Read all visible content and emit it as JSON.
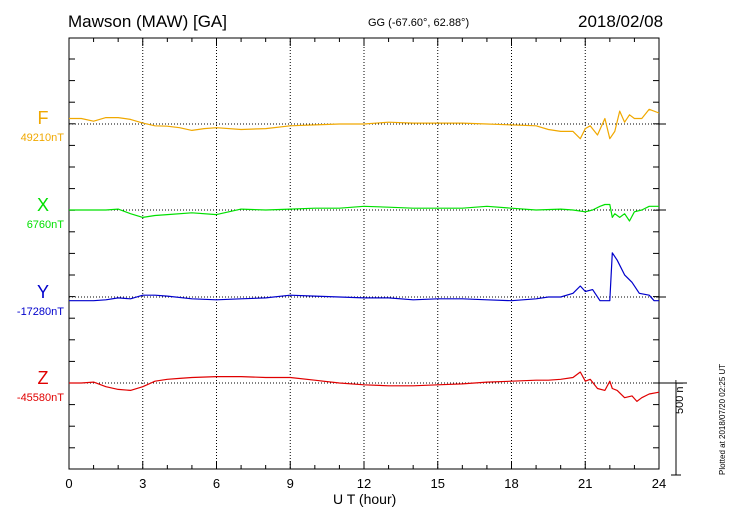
{
  "header": {
    "station": "Mawson (MAW)  [GA]",
    "coords": "GG (-67.60°,  62.88°)",
    "date": "2018/02/08"
  },
  "footer": "Plotted at 2018/07/20 02:25 UT",
  "chart_data": {
    "type": "line",
    "xlabel": "U T (hour)",
    "xlim": [
      0,
      24
    ],
    "xticks": [
      0,
      3,
      6,
      9,
      12,
      15,
      18,
      21,
      24
    ],
    "grid": "vertical dotted at 3-hour intervals; dotted baseline per component",
    "scale_bar": {
      "value": 500,
      "unit": "nT",
      "label": "500 nT"
    },
    "colors": {
      "F": "#f0a800",
      "X": "#00e000",
      "Y": "#0000cc",
      "Z": "#e00000"
    },
    "series": [
      {
        "name": "F",
        "baseline": 49210,
        "baseline_label": "49210nT",
        "color": "#f0a800",
        "x": [
          0,
          0.5,
          1,
          1.5,
          2,
          2.5,
          3,
          3.5,
          4,
          4.5,
          5,
          5.5,
          6,
          7,
          8,
          9,
          10,
          11,
          12,
          13,
          14,
          15,
          16,
          17,
          18,
          19,
          19.5,
          20,
          20.5,
          20.8,
          21,
          21.2,
          21.5,
          21.8,
          22,
          22.2,
          22.4,
          22.6,
          22.8,
          23,
          23.3,
          23.6,
          24
        ],
        "y": [
          49240,
          49240,
          49225,
          49245,
          49245,
          49235,
          49215,
          49200,
          49198,
          49190,
          49175,
          49185,
          49190,
          49180,
          49185,
          49200,
          49205,
          49210,
          49210,
          49220,
          49215,
          49215,
          49215,
          49210,
          49205,
          49200,
          49180,
          49170,
          49170,
          49130,
          49185,
          49200,
          49150,
          49240,
          49130,
          49170,
          49280,
          49220,
          49260,
          49240,
          49240,
          49290,
          49270
        ]
      },
      {
        "name": "X",
        "baseline": 6760,
        "baseline_label": "6760nT",
        "color": "#00e000",
        "x": [
          0,
          0.5,
          1,
          1.5,
          2,
          2.5,
          3,
          3.5,
          4,
          5,
          6,
          7,
          8,
          9,
          10,
          11,
          12,
          13,
          14,
          15,
          16,
          17,
          18,
          19,
          20,
          20.5,
          21,
          21.3,
          21.6,
          21.8,
          22,
          22.1,
          22.2,
          22.4,
          22.6,
          22.8,
          23,
          23.3,
          23.6,
          24
        ],
        "y": [
          6760,
          6760,
          6760,
          6760,
          6765,
          6740,
          6720,
          6730,
          6735,
          6745,
          6735,
          6765,
          6760,
          6765,
          6770,
          6770,
          6780,
          6775,
          6770,
          6770,
          6770,
          6780,
          6770,
          6760,
          6765,
          6760,
          6750,
          6760,
          6780,
          6790,
          6790,
          6720,
          6740,
          6720,
          6740,
          6700,
          6750,
          6760,
          6780,
          6780
        ]
      },
      {
        "name": "Y",
        "baseline": -17280,
        "baseline_label": "-17280nT",
        "color": "#0000cc",
        "x": [
          0,
          0.5,
          1,
          1.5,
          2,
          2.5,
          3,
          3.5,
          4,
          5,
          6,
          7,
          8,
          9,
          10,
          11,
          12,
          13,
          14,
          15,
          16,
          17,
          18,
          19,
          19.5,
          20,
          20.5,
          20.8,
          21,
          21.3,
          21.6,
          21.8,
          21.9,
          22,
          22.1,
          22.3,
          22.6,
          22.9,
          23.2,
          23.6,
          23.8,
          24
        ],
        "y": [
          -17300,
          -17300,
          -17300,
          -17295,
          -17285,
          -17290,
          -17270,
          -17270,
          -17275,
          -17290,
          -17295,
          -17290,
          -17285,
          -17270,
          -17275,
          -17280,
          -17285,
          -17285,
          -17295,
          -17290,
          -17290,
          -17295,
          -17300,
          -17290,
          -17280,
          -17280,
          -17260,
          -17220,
          -17250,
          -17240,
          -17300,
          -17300,
          -17300,
          -17300,
          -17040,
          -17080,
          -17160,
          -17200,
          -17260,
          -17270,
          -17300,
          -17300
        ]
      },
      {
        "name": "Z",
        "baseline": -45580,
        "baseline_label": "-45580nT",
        "color": "#e00000",
        "x": [
          0,
          0.5,
          1,
          1.5,
          2,
          2.5,
          3,
          3.5,
          4,
          4.5,
          5,
          6,
          7,
          8,
          9,
          10,
          11,
          12,
          13,
          14,
          15,
          16,
          17,
          18,
          19,
          19.5,
          20,
          20.5,
          20.8,
          21,
          21.2,
          21.5,
          21.8,
          22,
          22.1,
          22.3,
          22.6,
          22.9,
          23.1,
          23.3,
          23.6,
          24
        ],
        "y": [
          -45580,
          -45580,
          -45575,
          -45600,
          -45615,
          -45620,
          -45600,
          -45570,
          -45560,
          -45555,
          -45550,
          -45545,
          -45545,
          -45550,
          -45550,
          -45565,
          -45580,
          -45590,
          -45595,
          -45595,
          -45590,
          -45585,
          -45575,
          -45570,
          -45565,
          -45565,
          -45560,
          -45550,
          -45520,
          -45570,
          -45560,
          -45610,
          -45620,
          -45570,
          -45610,
          -45620,
          -45660,
          -45650,
          -45680,
          -45660,
          -45640,
          -45630
        ]
      }
    ]
  }
}
